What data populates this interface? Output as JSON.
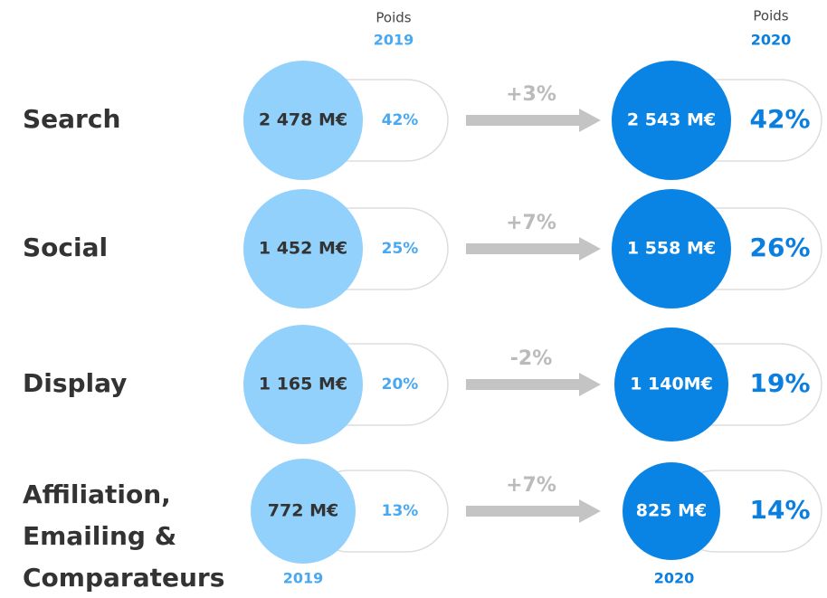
{
  "header": {
    "left": {
      "caption": "Poids",
      "year": "2019"
    },
    "right": {
      "caption": "Poids",
      "year": "2020"
    }
  },
  "footer": {
    "left_year": "2019",
    "right_year": "2020"
  },
  "rows": [
    {
      "label": [
        "Search"
      ],
      "value_2019": "2 478 M€",
      "share_2019": "42%",
      "growth": "+3%",
      "value_2020": "2 543 M€",
      "share_2020": "42%"
    },
    {
      "label": [
        "Social"
      ],
      "value_2019": "1 452 M€",
      "share_2019": "25%",
      "growth": "+7%",
      "value_2020": "1 558 M€",
      "share_2020": "26%"
    },
    {
      "label": [
        "Display"
      ],
      "value_2019": "1 165 M€",
      "share_2019": "20%",
      "growth": "-2%",
      "value_2020": "1 140M€",
      "share_2020": "19%"
    },
    {
      "label": [
        "Affiliation,",
        "Emailing &",
        "Comparateurs"
      ],
      "value_2019": "772 M€",
      "share_2019": "13%",
      "growth": "+7%",
      "value_2020": "825 M€",
      "share_2020": "14%"
    }
  ]
}
